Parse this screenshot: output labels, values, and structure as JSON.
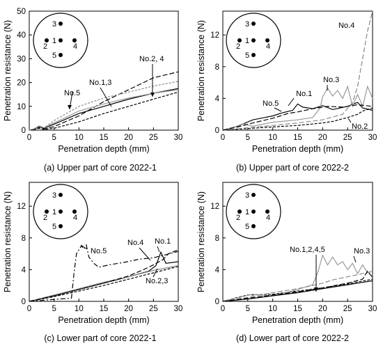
{
  "chart_data": [
    {
      "type": "line",
      "caption": "(a) Upper part of core 2022-1",
      "xlabel": "Penetration depth (mm)",
      "ylabel": "Penetration resistance (N)",
      "xlim": [
        0,
        30
      ],
      "ylim": [
        0,
        50
      ],
      "xticks": [
        0,
        5,
        10,
        15,
        20,
        25,
        30
      ],
      "yticks": [
        0,
        10,
        20,
        30,
        40,
        50
      ],
      "grid": false,
      "annotations": [
        "No.5",
        "No.1,3",
        "No.2, 4"
      ],
      "inset": {
        "holes": [
          "1",
          "2",
          "3",
          "4",
          "5"
        ]
      },
      "series": [
        {
          "label": "1",
          "color": "#000000",
          "dash": "",
          "points": [
            [
              0,
              0
            ],
            [
              1,
              0.5
            ],
            [
              2,
              1.5
            ],
            [
              3,
              0.8
            ],
            [
              5,
              2.5
            ],
            [
              10,
              7
            ],
            [
              15,
              10
            ],
            [
              20,
              13
            ],
            [
              25,
              15.5
            ],
            [
              30,
              17.5
            ]
          ]
        },
        {
          "label": "2",
          "color": "#000000",
          "dash": "7,3",
          "points": [
            [
              0,
              0
            ],
            [
              1,
              0.5
            ],
            [
              2,
              1.2
            ],
            [
              3,
              0.4
            ],
            [
              5,
              1.5
            ],
            [
              10,
              6
            ],
            [
              15,
              12
            ],
            [
              20,
              17
            ],
            [
              25,
              22
            ],
            [
              30,
              24.5
            ]
          ]
        },
        {
          "label": "3",
          "color": "#999999",
          "dash": "",
          "points": [
            [
              0,
              0
            ],
            [
              1,
              0.6
            ],
            [
              2,
              1.8
            ],
            [
              3,
              1
            ],
            [
              5,
              3
            ],
            [
              10,
              8
            ],
            [
              15,
              11
            ],
            [
              20,
              13.5
            ],
            [
              25,
              15.5
            ],
            [
              30,
              17
            ]
          ]
        },
        {
          "label": "4",
          "color": "#000000",
          "dash": "4,2",
          "points": [
            [
              0,
              0
            ],
            [
              1,
              0.3
            ],
            [
              2,
              0.8
            ],
            [
              3,
              0.3
            ],
            [
              5,
              0.8
            ],
            [
              10,
              3.5
            ],
            [
              15,
              7
            ],
            [
              20,
              10
            ],
            [
              25,
              13
            ],
            [
              30,
              16
            ]
          ]
        },
        {
          "label": "5",
          "color": "#888888",
          "dash": "3,2",
          "points": [
            [
              0,
              0
            ],
            [
              1,
              0.5
            ],
            [
              2,
              1.5
            ],
            [
              3,
              1
            ],
            [
              5,
              4
            ],
            [
              10,
              10
            ],
            [
              15,
              13.5
            ],
            [
              20,
              16
            ],
            [
              25,
              18.5
            ],
            [
              30,
              20.5
            ]
          ]
        }
      ]
    },
    {
      "type": "line",
      "caption": "(b) Upper part of core 2022-2",
      "xlabel": "Penetration depth (mm)",
      "ylabel": "Penetration resistance (N)",
      "xlim": [
        0,
        30
      ],
      "ylim": [
        0,
        15
      ],
      "xticks": [
        0,
        5,
        10,
        15,
        20,
        25,
        30
      ],
      "yticks": [
        0,
        4,
        8,
        12
      ],
      "grid": false,
      "annotations": [
        "No.4",
        "No.3",
        "No.1",
        "No.5",
        "No.2"
      ],
      "inset": {
        "holes": [
          "1",
          "2",
          "3",
          "4",
          "5"
        ]
      },
      "series": [
        {
          "label": "1",
          "color": "#000000",
          "dash": "",
          "points": [
            [
              0,
              0
            ],
            [
              3,
              0.5
            ],
            [
              6,
              1.3
            ],
            [
              10,
              1.8
            ],
            [
              12,
              2.2
            ],
            [
              14,
              2.5
            ],
            [
              15,
              3.3
            ],
            [
              16,
              2.9
            ],
            [
              18,
              2.7
            ],
            [
              20,
              3.1
            ],
            [
              22,
              2.6
            ],
            [
              25,
              3.0
            ],
            [
              27,
              3.5
            ],
            [
              28,
              2.8
            ],
            [
              30,
              2.5
            ]
          ]
        },
        {
          "label": "2",
          "color": "#000000",
          "dash": "4,2",
          "points": [
            [
              0,
              0
            ],
            [
              5,
              0.2
            ],
            [
              10,
              0.4
            ],
            [
              15,
              0.6
            ],
            [
              20,
              0.9
            ],
            [
              22,
              1.1
            ],
            [
              25,
              1.6
            ],
            [
              27,
              2.0
            ],
            [
              28,
              2.4
            ],
            [
              30,
              2.8
            ]
          ]
        },
        {
          "label": "3",
          "color": "#999999",
          "dash": "",
          "points": [
            [
              0,
              0
            ],
            [
              2,
              0.3
            ],
            [
              4,
              0.8
            ],
            [
              6,
              0.5
            ],
            [
              10,
              1.0
            ],
            [
              15,
              1.3
            ],
            [
              18,
              1.6
            ],
            [
              19.5,
              2.8
            ],
            [
              20,
              4.2
            ],
            [
              21,
              5.3
            ],
            [
              22,
              4.3
            ],
            [
              23,
              5.0
            ],
            [
              24,
              4.0
            ],
            [
              25,
              5.5
            ],
            [
              26,
              3.0
            ],
            [
              27,
              4.5
            ],
            [
              28,
              3.0
            ],
            [
              29,
              5.5
            ],
            [
              30,
              4.0
            ]
          ]
        },
        {
          "label": "4",
          "color": "#888888",
          "dash": "7,3",
          "points": [
            [
              0,
              0
            ],
            [
              5,
              0.3
            ],
            [
              10,
              0.6
            ],
            [
              15,
              0.9
            ],
            [
              20,
              1.3
            ],
            [
              24,
              2.0
            ],
            [
              26,
              3.5
            ],
            [
              27,
              5.5
            ],
            [
              28,
              9.0
            ],
            [
              29,
              12.5
            ],
            [
              30,
              15
            ]
          ]
        },
        {
          "label": "5",
          "color": "#000000",
          "dash": "7,3",
          "points": [
            [
              0,
              0
            ],
            [
              3,
              0.4
            ],
            [
              6,
              0.9
            ],
            [
              10,
              1.5
            ],
            [
              13,
              2.1
            ],
            [
              15,
              2.3
            ],
            [
              18,
              2.7
            ],
            [
              21,
              3.0
            ],
            [
              24,
              2.9
            ],
            [
              27,
              3.2
            ],
            [
              30,
              3.0
            ]
          ]
        }
      ]
    },
    {
      "type": "line",
      "caption": "(c) Lower part of core 2022-1",
      "xlabel": "Penetration depth (mm)",
      "ylabel": "Penetration resistance (N)",
      "xlim": [
        0,
        30
      ],
      "ylim": [
        0,
        15
      ],
      "xticks": [
        0,
        5,
        10,
        15,
        20,
        25,
        30
      ],
      "yticks": [
        0,
        4,
        8,
        12
      ],
      "grid": false,
      "annotations": [
        "No.5",
        "No.4",
        "No.1",
        "No.2,3"
      ],
      "inset": {
        "holes": [
          "1",
          "2",
          "3",
          "4",
          "5"
        ]
      },
      "series": [
        {
          "label": "1",
          "color": "#000000",
          "dash": "",
          "points": [
            [
              0,
              0
            ],
            [
              5,
              0.7
            ],
            [
              10,
              1.5
            ],
            [
              15,
              2.3
            ],
            [
              20,
              3.1
            ],
            [
              24,
              3.8
            ],
            [
              25.5,
              4.5
            ],
            [
              26.5,
              6.2
            ],
            [
              27.5,
              4.8
            ],
            [
              30,
              5.0
            ]
          ]
        },
        {
          "label": "2",
          "color": "#000000",
          "dash": "4,2",
          "points": [
            [
              0,
              0
            ],
            [
              5,
              0.6
            ],
            [
              10,
              1.3
            ],
            [
              15,
              2.0
            ],
            [
              20,
              2.8
            ],
            [
              25,
              3.6
            ],
            [
              30,
              4.4
            ]
          ]
        },
        {
          "label": "3",
          "color": "#888888",
          "dash": "",
          "points": [
            [
              0,
              0
            ],
            [
              5,
              0.8
            ],
            [
              10,
              1.6
            ],
            [
              15,
              2.4
            ],
            [
              20,
              3.1
            ],
            [
              25,
              3.9
            ],
            [
              30,
              4.5
            ]
          ]
        },
        {
          "label": "4",
          "color": "#000000",
          "dash": "7,3",
          "points": [
            [
              0,
              0
            ],
            [
              5,
              0.7
            ],
            [
              10,
              1.5
            ],
            [
              15,
              2.3
            ],
            [
              20,
              3.2
            ],
            [
              23,
              4.0
            ],
            [
              25,
              4.6
            ],
            [
              27,
              5.3
            ],
            [
              28,
              6.0
            ],
            [
              30,
              6.5
            ]
          ]
        },
        {
          "label": "5",
          "color": "#000000",
          "dash": "7,3,2,3",
          "points": [
            [
              0,
              0
            ],
            [
              4,
              0.2
            ],
            [
              8.5,
              0.4
            ],
            [
              9,
              3.5
            ],
            [
              9.5,
              6.0
            ],
            [
              10.5,
              7.0
            ],
            [
              11,
              6.6
            ],
            [
              11.5,
              7.1
            ],
            [
              12,
              5.6
            ],
            [
              13,
              4.8
            ],
            [
              14,
              4.3
            ],
            [
              16,
              4.6
            ],
            [
              19,
              4.9
            ],
            [
              22,
              5.3
            ],
            [
              25,
              5.5
            ],
            [
              27,
              5.8
            ],
            [
              30,
              6.3
            ]
          ]
        }
      ]
    },
    {
      "type": "line",
      "caption": "(d) Lower part of core 2022-2",
      "xlabel": "Penetration depth (mm)",
      "ylabel": "Penetration resistance (N)",
      "xlim": [
        0,
        30
      ],
      "ylim": [
        0,
        15
      ],
      "xticks": [
        0,
        5,
        10,
        15,
        20,
        25,
        30
      ],
      "yticks": [
        0,
        4,
        8,
        12
      ],
      "grid": false,
      "annotations": [
        "No.1,2,4,5",
        "No.3"
      ],
      "inset": {
        "holes": [
          "1",
          "2",
          "3",
          "4",
          "5"
        ]
      },
      "series": [
        {
          "label": "1",
          "color": "#000000",
          "dash": "",
          "points": [
            [
              0,
              0
            ],
            [
              5,
              0.3
            ],
            [
              10,
              0.7
            ],
            [
              15,
              1.1
            ],
            [
              20,
              1.6
            ],
            [
              25,
              2.1
            ],
            [
              30,
              2.6
            ]
          ]
        },
        {
          "label": "2",
          "color": "#000000",
          "dash": "4,2",
          "points": [
            [
              0,
              0
            ],
            [
              3,
              0.5
            ],
            [
              5,
              0.8
            ],
            [
              10,
              0.9
            ],
            [
              15,
              1.3
            ],
            [
              20,
              1.7
            ],
            [
              25,
              2.2
            ],
            [
              30,
              2.8
            ]
          ]
        },
        {
          "label": "3",
          "color": "#999999",
          "dash": "",
          "points": [
            [
              0,
              0
            ],
            [
              2,
              0.3
            ],
            [
              4,
              0.6
            ],
            [
              6,
              0.9
            ],
            [
              9,
              0.7
            ],
            [
              12,
              1.0
            ],
            [
              15,
              1.5
            ],
            [
              17,
              1.9
            ],
            [
              18,
              2.1
            ],
            [
              19,
              3.6
            ],
            [
              20,
              5.8
            ],
            [
              21,
              4.6
            ],
            [
              22,
              5.6
            ],
            [
              23,
              4.6
            ],
            [
              24,
              5.0
            ],
            [
              25,
              4.0
            ],
            [
              26,
              4.8
            ],
            [
              27,
              3.5
            ],
            [
              28,
              4.6
            ],
            [
              29,
              3.6
            ],
            [
              30,
              3.8
            ]
          ]
        },
        {
          "label": "4",
          "color": "#888888",
          "dash": "7,3",
          "points": [
            [
              0,
              0
            ],
            [
              5,
              0.5
            ],
            [
              10,
              1.1
            ],
            [
              15,
              1.6
            ],
            [
              18,
              2.0
            ],
            [
              20,
              2.3
            ],
            [
              22,
              2.7
            ],
            [
              25,
              3.1
            ],
            [
              28,
              3.5
            ],
            [
              30,
              3.8
            ]
          ]
        },
        {
          "label": "5",
          "color": "#000000",
          "dash": "7,3",
          "points": [
            [
              0,
              0
            ],
            [
              5,
              0.4
            ],
            [
              10,
              0.8
            ],
            [
              15,
              1.2
            ],
            [
              20,
              1.7
            ],
            [
              25,
              2.3
            ],
            [
              28,
              2.8
            ],
            [
              29,
              3.8
            ],
            [
              30,
              3.0
            ]
          ]
        }
      ]
    }
  ]
}
